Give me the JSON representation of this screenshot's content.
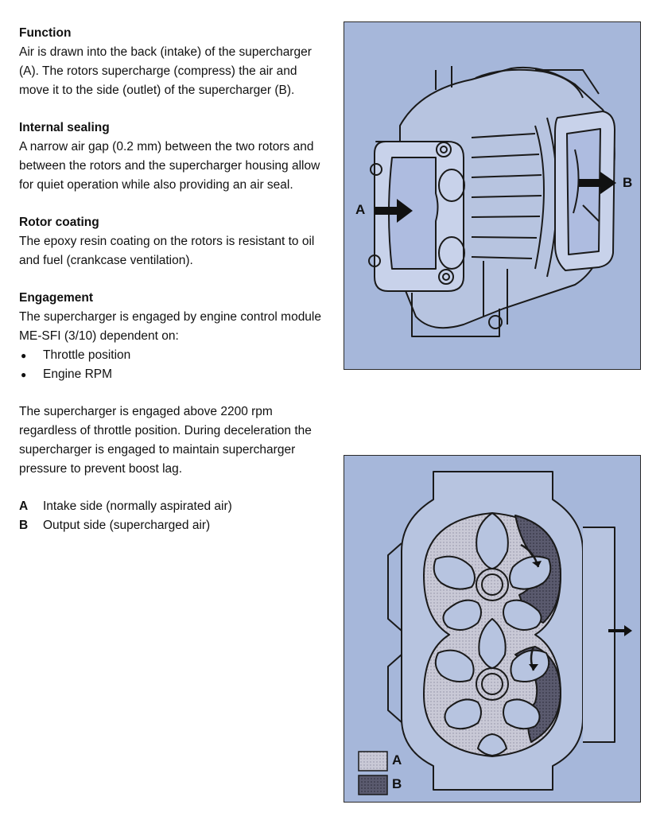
{
  "sections": {
    "function": {
      "heading": "Function",
      "body": "Air is drawn into the back (intake) of the supercharger (A).  The rotors supercharge (compress) the air and move it to the side (outlet) of the supercharger (B)."
    },
    "internal_sealing": {
      "heading": "Internal sealing",
      "body": "A narrow air gap (0.2 mm) between the two rotors and between the rotors and the supercharger housing allow for quiet operation while also providing an air seal."
    },
    "rotor_coating": {
      "heading": "Rotor coating",
      "body": "The epoxy resin coating on the rotors  is resistant to oil and fuel (crankcase ventilation)."
    },
    "engagement": {
      "heading": "Engagement",
      "body": "The supercharger is engaged by engine control module ME-SFI (3/10) dependent on:",
      "bullets": [
        "Throttle position",
        "Engine RPM"
      ],
      "body2": "The supercharger is engaged above 2200 rpm regardless of throttle position.  During deceleration the supercharger is engaged to maintain supercharger pressure to prevent boost lag."
    }
  },
  "legend": [
    {
      "key": "A",
      "text": "Intake side (normally aspirated air)"
    },
    {
      "key": "B",
      "text": "Output side (supercharged air)"
    }
  ],
  "figure_top": {
    "label_a": "A",
    "label_b": "B"
  },
  "figure_bottom": {
    "key_a": "A",
    "key_b": "B"
  },
  "colors": {
    "figure_bg": "#a6b7da",
    "intake_fill": "#c9c9d6",
    "output_fill": "#55556a"
  }
}
